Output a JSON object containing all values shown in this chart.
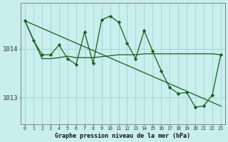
{
  "title": "Graphe pression niveau de la mer (hPa)",
  "background_color": "#c8eeed",
  "grid_color": "#a0d4d0",
  "line_color": "#1a5c1a",
  "yticks": [
    1013,
    1014
  ],
  "ylim": [
    1012.45,
    1014.95
  ],
  "xlim": [
    -0.5,
    23.5
  ],
  "straight_line": {
    "x": [
      0,
      23
    ],
    "y": [
      1014.58,
      1012.82
    ]
  },
  "smooth_line": {
    "x": [
      0,
      1,
      2,
      3,
      4,
      5,
      6,
      7,
      8,
      9,
      10,
      11,
      12,
      13,
      14,
      15,
      16,
      17,
      18,
      19,
      20,
      21,
      22,
      23
    ],
    "y": [
      1014.58,
      1014.18,
      1013.8,
      1013.8,
      1013.82,
      1013.85,
      1013.82,
      1013.82,
      1013.82,
      1013.84,
      1013.86,
      1013.88,
      1013.88,
      1013.88,
      1013.9,
      1013.9,
      1013.9,
      1013.9,
      1013.9,
      1013.9,
      1013.9,
      1013.9,
      1013.9,
      1013.88
    ]
  },
  "volatile_line": {
    "x": [
      0,
      1,
      2,
      3,
      4,
      5,
      6,
      7,
      8,
      9,
      10,
      11,
      12,
      13,
      14,
      15,
      16,
      17,
      18,
      19,
      20,
      21,
      22,
      23
    ],
    "y": [
      1014.58,
      1014.18,
      1013.88,
      1013.88,
      1014.08,
      1013.8,
      1013.68,
      1014.35,
      1013.7,
      1014.6,
      1014.68,
      1014.55,
      1014.12,
      1013.8,
      1014.38,
      1013.95,
      1013.55,
      1013.2,
      1013.08,
      1013.1,
      1012.8,
      1012.82,
      1013.05,
      1013.88
    ]
  }
}
